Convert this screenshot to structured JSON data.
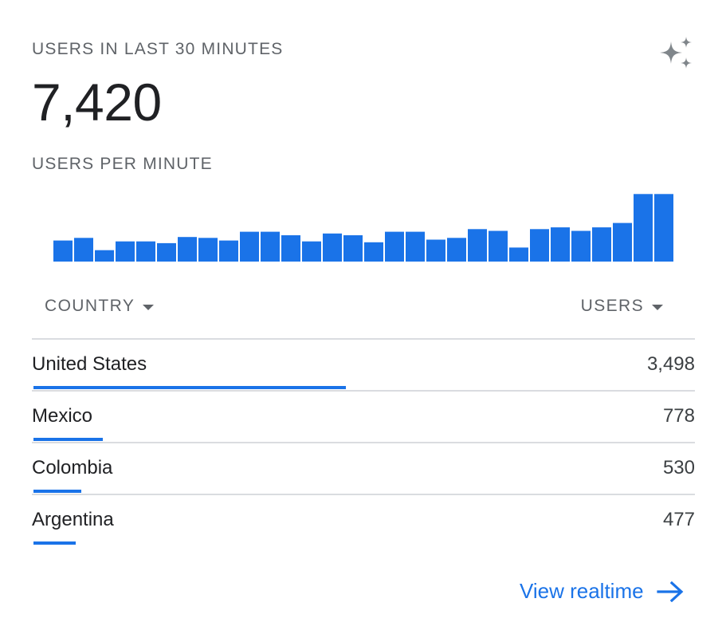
{
  "header": {
    "title": "USERS IN LAST 30 MINUTES",
    "total": "7,420",
    "subtitle": "USERS PER MINUTE",
    "insights_icon": "sparkle-icon"
  },
  "chart_data": {
    "type": "bar",
    "values": [
      24,
      27,
      13,
      23,
      23,
      21,
      28,
      27,
      24,
      34,
      34,
      30,
      23,
      32,
      30,
      22,
      34,
      34,
      25,
      27,
      37,
      35,
      16,
      37,
      39,
      35,
      39,
      44,
      77,
      77
    ],
    "ylim": [
      0,
      80
    ],
    "color": "#1a73e8",
    "grid": false
  },
  "table": {
    "columns": [
      {
        "label": "COUNTRY",
        "sort_icon": "triangle-down-icon"
      },
      {
        "label": "USERS",
        "sort_icon": "triangle-down-icon"
      }
    ],
    "rows": [
      {
        "country": "United States",
        "users": "3,498",
        "share": 1.0
      },
      {
        "country": "Mexico",
        "users": "778",
        "share": 0.222
      },
      {
        "country": "Colombia",
        "users": "530",
        "share": 0.152
      },
      {
        "country": "Argentina",
        "users": "477",
        "share": 0.136
      }
    ]
  },
  "footer": {
    "link_label": "View realtime",
    "link_icon": "arrow-right-icon"
  },
  "colors": {
    "accent": "#1a73e8",
    "text": "#202124",
    "muted": "#5f6368",
    "divider": "#dadce0"
  }
}
